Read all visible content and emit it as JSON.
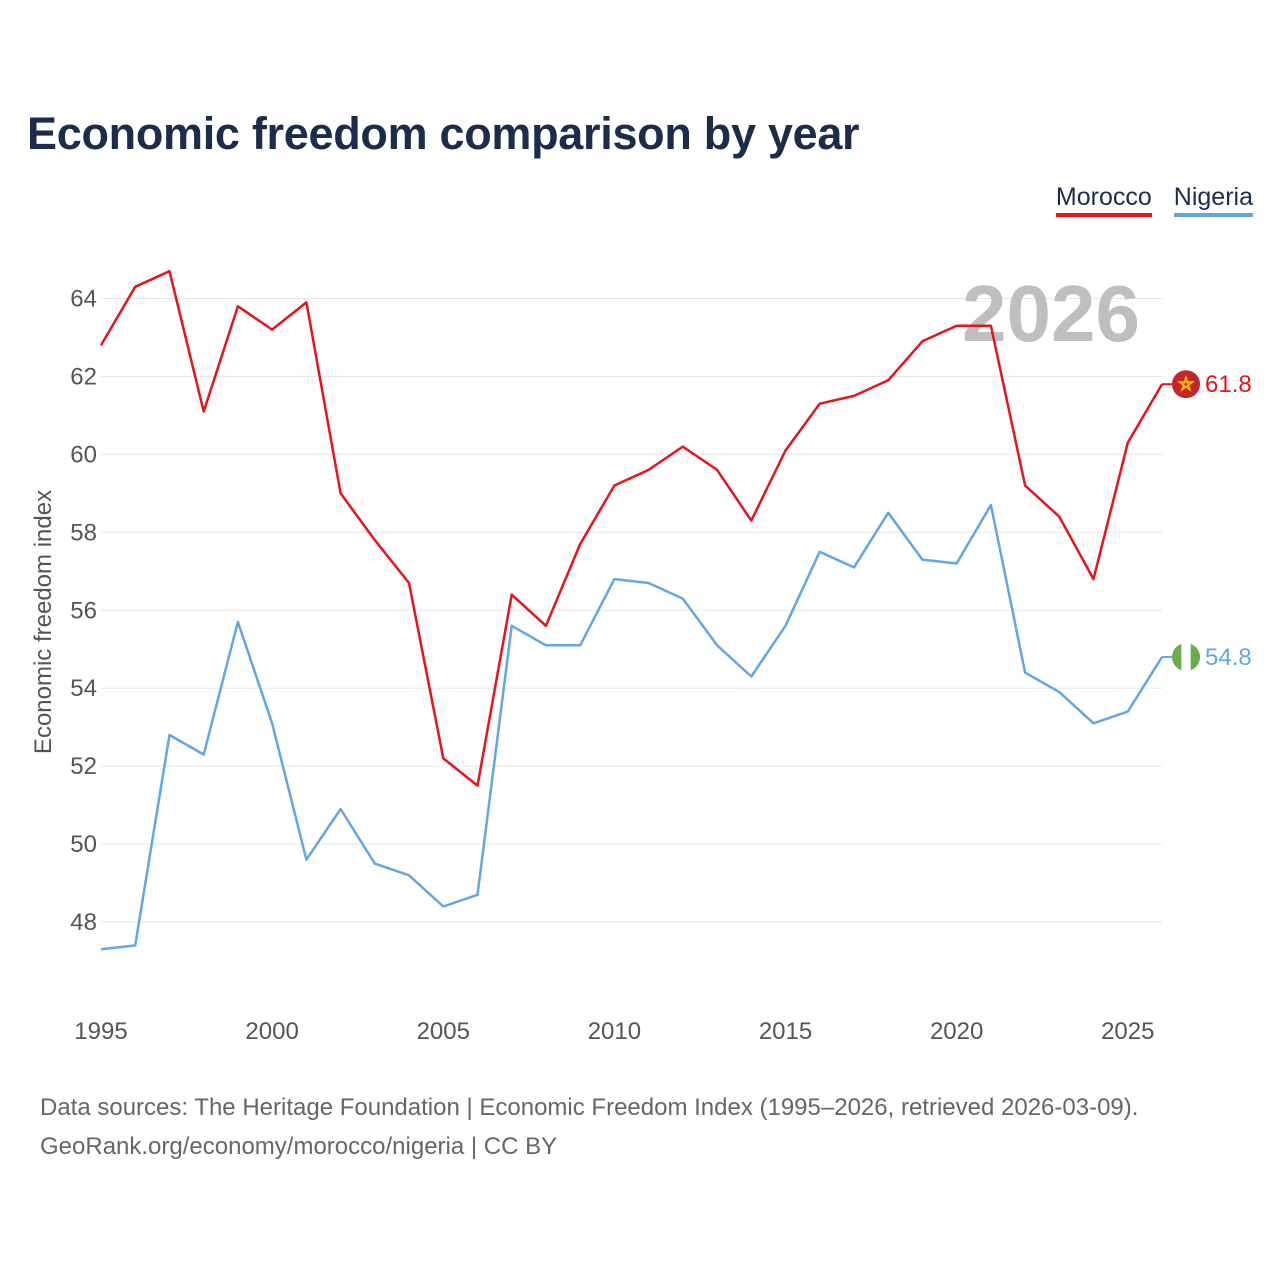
{
  "title": "Economic freedom comparison by year",
  "legend": [
    {
      "name": "Morocco",
      "color": "#e8131b"
    },
    {
      "name": "Nigeria",
      "color": "#62a6e3"
    }
  ],
  "footer": {
    "line1": "Data sources: The Heritage Foundation | Economic Freedom Index (1995–2026, retrieved 2026-03-09).",
    "line2": "GeoRank.org/economy/morocco/nigeria | CC BY"
  },
  "chart_data": {
    "type": "line",
    "title": "Economic freedom comparison by year",
    "xlabel": "",
    "ylabel": "Economic freedom index",
    "year_label": "2026",
    "xlim": [
      1995,
      2026
    ],
    "ylim": [
      46,
      65.5
    ],
    "x_ticks": [
      "1995",
      "2000",
      "2005",
      "2010",
      "2015",
      "2020",
      "2025"
    ],
    "y_ticks": [
      "48",
      "50",
      "52",
      "54",
      "56",
      "58",
      "60",
      "62",
      "64"
    ],
    "grid": true,
    "x": [
      1995,
      1996,
      1997,
      1998,
      1999,
      2000,
      2001,
      2002,
      2003,
      2004,
      2005,
      2006,
      2007,
      2008,
      2009,
      2010,
      2011,
      2012,
      2013,
      2014,
      2015,
      2016,
      2017,
      2018,
      2019,
      2020,
      2021,
      2022,
      2023,
      2024,
      2025,
      2026
    ],
    "series": [
      {
        "name": "Morocco",
        "color": "#e8131b",
        "end_label": "61.8",
        "flag": "morocco-flag-icon",
        "values": [
          62.8,
          64.3,
          64.7,
          61.1,
          63.8,
          63.2,
          63.9,
          59.0,
          57.8,
          56.7,
          52.2,
          51.5,
          56.4,
          55.6,
          57.7,
          59.2,
          59.6,
          60.2,
          59.6,
          58.3,
          60.1,
          61.3,
          61.5,
          61.9,
          62.9,
          63.3,
          63.3,
          59.2,
          58.4,
          56.8,
          60.3,
          61.8
        ]
      },
      {
        "name": "Nigeria",
        "color": "#62a6e3",
        "end_label": "54.8",
        "flag": "nigeria-flag-icon",
        "values": [
          47.3,
          47.4,
          52.8,
          52.3,
          55.7,
          53.1,
          49.6,
          50.9,
          49.5,
          49.2,
          48.4,
          48.7,
          55.6,
          55.1,
          55.1,
          56.8,
          56.7,
          56.3,
          55.1,
          54.3,
          55.6,
          57.5,
          57.1,
          58.5,
          57.3,
          57.2,
          58.7,
          54.4,
          53.9,
          53.1,
          53.4,
          54.8
        ]
      }
    ]
  }
}
